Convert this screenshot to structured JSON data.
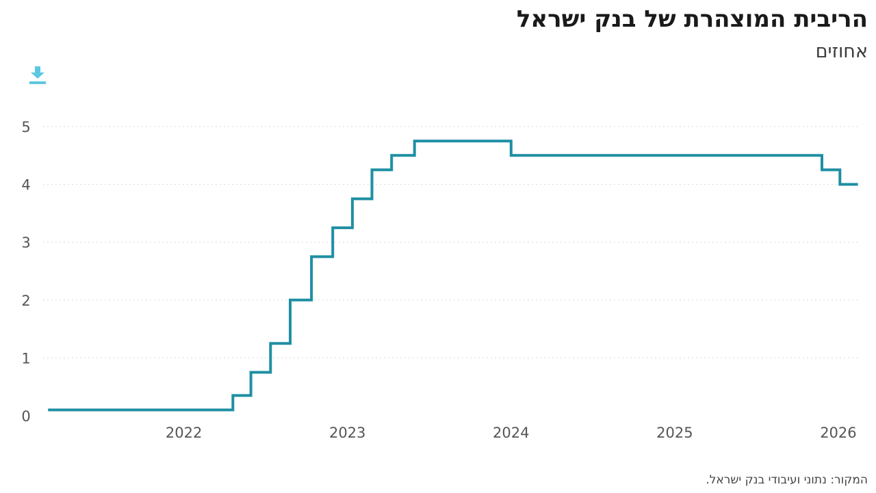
{
  "header": {
    "title": "הריבית המוצהרת של בנק ישראל",
    "subtitle": "אחוזים"
  },
  "footer": {
    "source": "המקור: נתוני ועיבודי בנק ישראל."
  },
  "toolbar": {
    "download_icon": "download-icon"
  },
  "colors": {
    "line": "#1f8fa3",
    "grid": "#d9d9d9",
    "icon": "#5cc8e0"
  },
  "chart_data": {
    "type": "line",
    "step": true,
    "title": "הריבית המוצהרת של בנק ישראל",
    "ylabel": "אחוזים",
    "xlabel": "",
    "ylim": [
      0,
      5
    ],
    "yticks": [
      0,
      1,
      2,
      3,
      4,
      5
    ],
    "xlim": [
      2021.14,
      2026.13
    ],
    "xticks": [
      2022,
      2023,
      2024,
      2025,
      2026
    ],
    "grid": true,
    "legend": "none",
    "series": [
      {
        "x": [
          2021.17,
          2022.3,
          2022.3,
          2022.41,
          2022.41,
          2022.53,
          2022.53,
          2022.65,
          2022.65,
          2022.78,
          2022.78,
          2022.91,
          2022.91,
          2023.03,
          2023.03,
          2023.15,
          2023.15,
          2023.27,
          2023.27,
          2023.41,
          2023.41,
          2024.0,
          2024.0,
          2025.9,
          2025.9,
          2026.01,
          2026.01,
          2026.12
        ],
        "y": [
          0.1,
          0.1,
          0.35,
          0.35,
          0.75,
          0.75,
          1.25,
          1.25,
          2.0,
          2.0,
          2.75,
          2.75,
          3.25,
          3.25,
          3.75,
          3.75,
          4.25,
          4.25,
          4.5,
          4.5,
          4.75,
          4.75,
          4.5,
          4.5,
          4.25,
          4.25,
          4.0,
          4.0
        ]
      }
    ]
  }
}
